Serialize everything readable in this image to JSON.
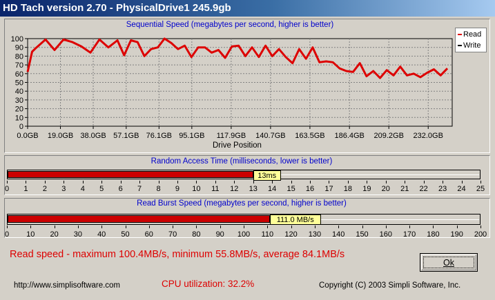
{
  "window": {
    "title": "HD Tach version 2.70 - PhysicalDrive1 245.9gb"
  },
  "sequential": {
    "title": "Sequential Speed (megabytes per second, higher is better)",
    "legend": [
      {
        "label": "Read",
        "color": "#dd0000"
      },
      {
        "label": "Write",
        "color": "#000000"
      }
    ]
  },
  "random_access": {
    "title": "Random Access Time (milliseconds, lower is better)",
    "value_label": "13ms",
    "value": 13,
    "max": 25
  },
  "burst": {
    "title": "Read Burst Speed (megabytes per second, higher is better)",
    "value_label": "111.0 MB/s",
    "value": 111.0,
    "max": 200
  },
  "footer": {
    "stats": "Read speed - maximum 100.4MB/s, minimum 55.8MB/s, average 84.1MB/s",
    "cpu": "CPU utilization: 32.2%",
    "url": "http://www.simplisoftware.com",
    "copyright": "Copyright (C) 2003 Simpli Software, Inc.",
    "ok_label": "Ok"
  },
  "chart_data": [
    {
      "type": "line",
      "title": "Sequential Speed (megabytes per second, higher is better)",
      "xlabel": "Drive Position",
      "ylabel": "",
      "x_tick_labels": [
        "0.0GB",
        "19.0GB",
        "38.0GB",
        "57.1GB",
        "76.1GB",
        "95.1GB",
        "117.9GB",
        "140.7GB",
        "163.5GB",
        "186.4GB",
        "209.2GB",
        "232.0GB"
      ],
      "x_ticks": [
        0.0,
        19.0,
        38.0,
        57.1,
        76.1,
        95.1,
        117.9,
        140.7,
        163.5,
        186.4,
        209.2,
        232.0
      ],
      "xlim": [
        0,
        245.9
      ],
      "ylim": [
        0,
        100
      ],
      "y_ticks": [
        0,
        10,
        20,
        30,
        40,
        50,
        60,
        70,
        80,
        90,
        100
      ],
      "y_tick_labels": [
        "0",
        "10",
        "20",
        "30",
        "40",
        "50",
        "60",
        "70",
        "80",
        "90",
        "100"
      ],
      "grid": true,
      "legend_position": "top-right",
      "series": [
        {
          "name": "Read",
          "color": "#dd0000",
          "x": [
            0,
            2.6,
            5.2,
            10.4,
            15.6,
            20.8,
            26,
            31.2,
            36.4,
            41.6,
            46.8,
            52,
            55.9,
            59.8,
            63.7,
            67.6,
            71.5,
            75.4,
            79.3,
            83.2,
            87.1,
            91,
            94.9,
            98.8,
            102.7,
            106.6,
            110.5,
            114.4,
            118.3,
            122.2,
            126.1,
            130,
            133.9,
            137.8,
            141.7,
            145.6,
            149.5,
            153.4,
            157.3,
            161.2,
            165.1,
            169,
            172.9,
            176.8,
            180.7,
            184.6,
            188.5,
            192.4,
            196.3,
            200.2,
            204.1,
            208,
            211.9,
            215.8,
            219.7,
            223.6,
            227.5,
            231.4,
            235.3,
            239.2,
            243.1
          ],
          "values": [
            62,
            85,
            90,
            99,
            87,
            99,
            96,
            91,
            84,
            99,
            90,
            98,
            81,
            98,
            96,
            80,
            88,
            90,
            100,
            95,
            88,
            92,
            79,
            90,
            90,
            84,
            87,
            78,
            91,
            92,
            80,
            90,
            79,
            92,
            80,
            88,
            79,
            72,
            88,
            77,
            90,
            73,
            74,
            73,
            66,
            63,
            62,
            72,
            57,
            63,
            55,
            64,
            58,
            68,
            58,
            60,
            56,
            61,
            65,
            58,
            66
          ],
          "note": ""
        }
      ]
    },
    {
      "type": "bar",
      "title": "Random Access Time (milliseconds, lower is better)",
      "categories": [
        "Random Access Time"
      ],
      "values": [
        13
      ],
      "xlim": [
        0,
        25
      ],
      "x_tick_labels": [
        "0",
        "1",
        "2",
        "3",
        "4",
        "5",
        "6",
        "7",
        "8",
        "9",
        "10",
        "11",
        "12",
        "13",
        "14",
        "15",
        "16",
        "17",
        "18",
        "19",
        "20",
        "21",
        "22",
        "23",
        "24",
        "25"
      ],
      "data_label": "13ms"
    },
    {
      "type": "bar",
      "title": "Read Burst Speed (megabytes per second, higher is better)",
      "categories": [
        "Read Burst Speed"
      ],
      "values": [
        111.0
      ],
      "xlim": [
        0,
        200
      ],
      "x_tick_labels": [
        "0",
        "10",
        "20",
        "30",
        "40",
        "50",
        "60",
        "70",
        "80",
        "90",
        "100",
        "110",
        "120",
        "130",
        "140",
        "150",
        "160",
        "170",
        "180",
        "190",
        "200"
      ],
      "data_label": "111.0 MB/s"
    }
  ]
}
